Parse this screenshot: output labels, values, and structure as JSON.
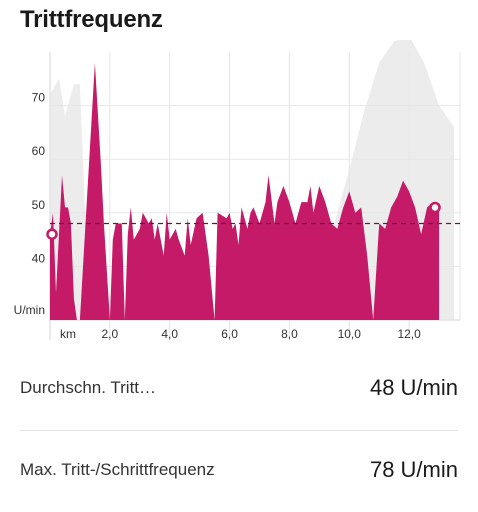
{
  "header": {
    "title": "Trittfrequenz"
  },
  "stats": [
    {
      "label": "Durchschn. Tritt…",
      "value": "48 U/min"
    },
    {
      "label": "Max. Tritt-/Schrittfrequenz",
      "value": "78 U/min"
    }
  ],
  "colors": {
    "series": "#c41a68",
    "background_series": "#e6e6e6",
    "average_line": "#7a1038"
  },
  "chart_data": {
    "type": "area",
    "x_unit_label": "km",
    "y_unit_label": "U/min",
    "xlim": [
      0,
      13.7
    ],
    "ylim": [
      30,
      80
    ],
    "x_ticks": [
      "2,0",
      "4,0",
      "6,0",
      "8,0",
      "10,0",
      "12,0"
    ],
    "x_tick_values": [
      2,
      4,
      6,
      8,
      10,
      12
    ],
    "y_ticks": [
      "40",
      "50",
      "60",
      "70"
    ],
    "y_tick_values": [
      40,
      50,
      60,
      70
    ],
    "average": 48,
    "average_line_style": "dashed",
    "start_value": 46,
    "end_value": 51,
    "series": [
      {
        "x": [
          0,
          0.1,
          0.2,
          0.4,
          0.5,
          0.6,
          0.7,
          0.8,
          0.9,
          1.0,
          1.5,
          1.7,
          1.8,
          2.0,
          2.1,
          2.2,
          2.4,
          2.5,
          2.6,
          2.7,
          2.8,
          3.0,
          3.1,
          3.3,
          3.4,
          3.5,
          3.6,
          3.8,
          3.9,
          4.0,
          4.2,
          4.3,
          4.5,
          4.6,
          4.7,
          4.9,
          5.1,
          5.3,
          5.5,
          5.6,
          5.9,
          6.0,
          6.1,
          6.2,
          6.3,
          6.4,
          6.6,
          6.7,
          6.8,
          7.0,
          7.2,
          7.3,
          7.5,
          7.6,
          7.8,
          8.0,
          8.2,
          8.4,
          8.6,
          8.7,
          8.8,
          9.0,
          9.2,
          9.4,
          9.6,
          9.8,
          10.0,
          10.2,
          10.4,
          10.6,
          10.8,
          11.0,
          11.2,
          11.4,
          11.6,
          11.8,
          12.0,
          12.2,
          12.4,
          12.6,
          12.8,
          13.0
        ],
        "values": [
          46,
          50,
          35,
          57,
          51,
          51,
          48,
          34,
          30,
          30,
          78,
          59,
          48,
          30,
          45,
          48,
          48,
          30,
          46,
          51,
          45,
          47,
          50,
          48,
          49,
          45,
          48,
          42,
          50,
          45,
          47,
          45,
          42,
          49,
          44,
          49,
          50,
          42,
          30,
          50,
          49,
          50,
          47,
          48,
          44,
          51,
          47,
          50,
          51,
          48,
          52,
          57,
          48,
          52,
          55,
          52,
          48,
          52,
          52,
          55,
          50,
          55,
          52,
          48,
          47,
          51,
          54,
          50,
          51,
          42,
          30,
          48,
          47,
          51,
          53,
          56,
          54,
          51,
          46,
          51,
          52,
          51
        ]
      },
      {
        "x": [
          0,
          0.3,
          0.5,
          0.8,
          1.0,
          1.1,
          1.3,
          1.6,
          2.0,
          3.0,
          4.0,
          5.0,
          6.0,
          7.0,
          8.0,
          9.0,
          9.5,
          10.0,
          10.5,
          11.0,
          11.5,
          12.0,
          12.5,
          13.0,
          13.5
        ],
        "values": [
          72,
          75,
          68,
          74,
          74,
          60,
          33,
          30,
          30,
          30,
          30,
          30,
          30,
          32,
          35,
          40,
          48,
          58,
          69,
          78,
          82,
          83,
          78,
          70,
          66
        ]
      }
    ]
  }
}
